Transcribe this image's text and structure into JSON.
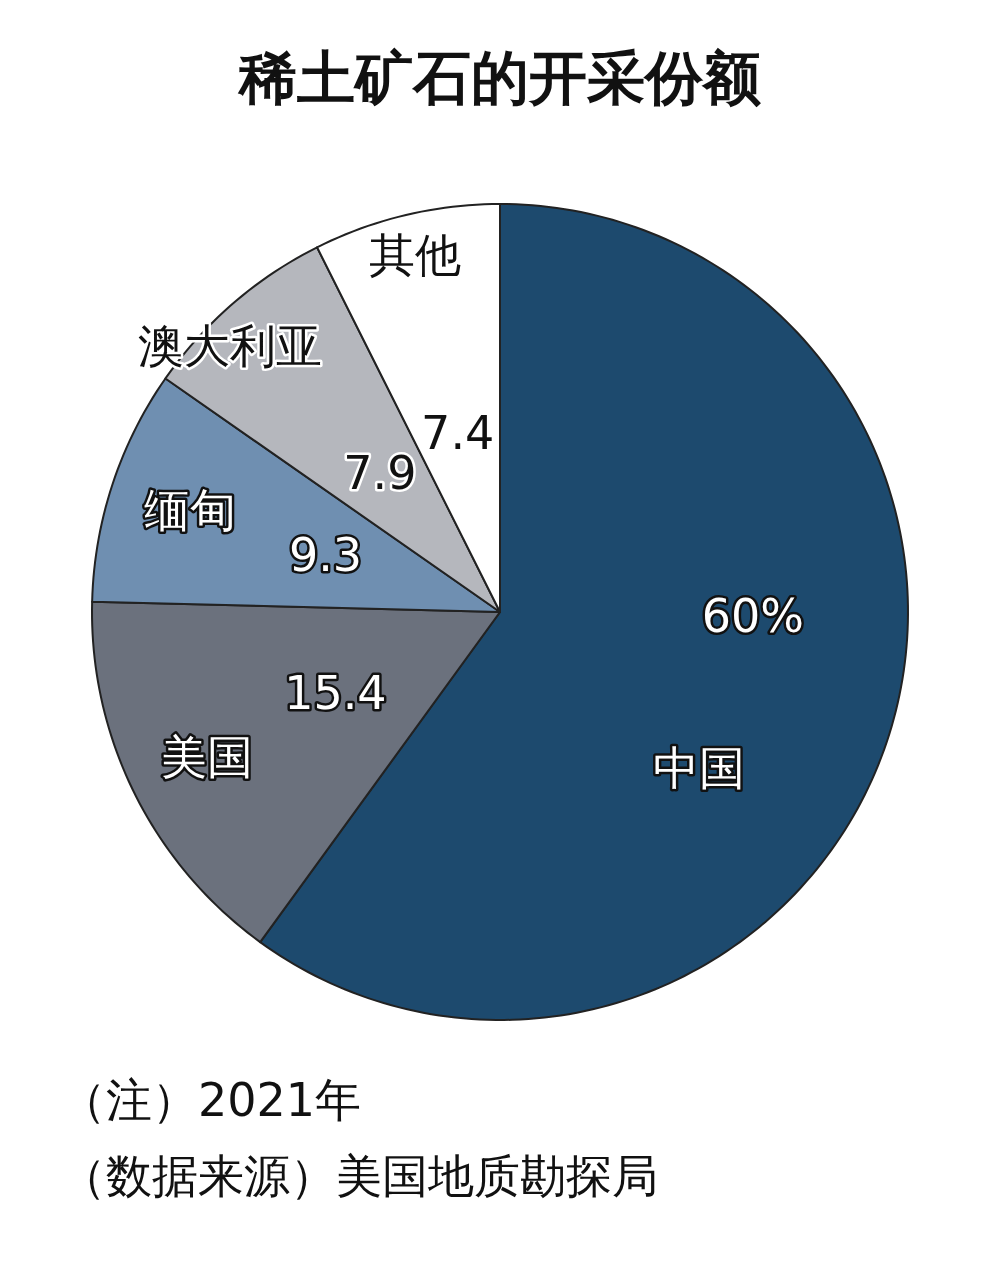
{
  "chart_data": {
    "type": "pie",
    "title": "稀土矿石的开采份额",
    "categories": [
      "中国",
      "美国",
      "缅甸",
      "澳大利亚",
      "其他"
    ],
    "values": [
      60,
      15.4,
      9.3,
      7.9,
      7.4
    ],
    "colors": [
      "#1d4a6e",
      "#6b717d",
      "#6f8fb1",
      "#b5b7bd",
      "#ffffff"
    ],
    "value_labels": [
      "60%",
      "15.4",
      "9.3",
      "7.9",
      "7.4"
    ],
    "annotations": [
      "（注）2021年",
      "（数据来源）美国地质勘探局"
    ]
  }
}
